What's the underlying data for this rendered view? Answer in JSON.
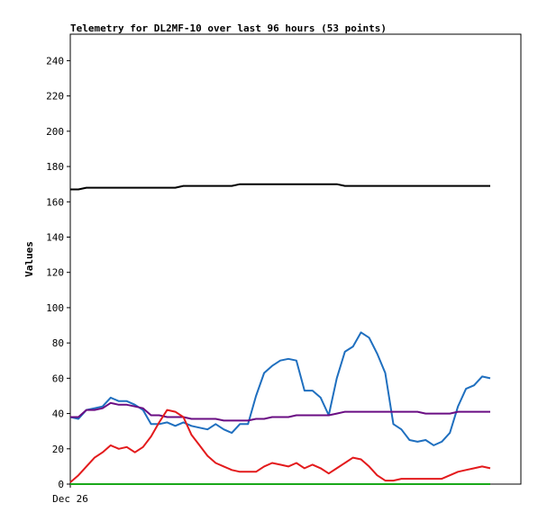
{
  "chart_data": {
    "type": "line",
    "title": "Telemetry for DL2MF-10 over last 96 hours (53 points)",
    "ylabel": "Values",
    "xlabel": "",
    "ylim": [
      0,
      255
    ],
    "y_ticks": [
      0,
      20,
      40,
      60,
      80,
      100,
      120,
      140,
      160,
      180,
      200,
      220,
      240
    ],
    "x_tick_labels": [
      "Dec 26"
    ],
    "grid": false,
    "legend": "none",
    "point_count": 53,
    "series": [
      {
        "color": "#000000",
        "values": [
          167,
          167,
          168,
          168,
          168,
          168,
          168,
          168,
          168,
          168,
          168,
          168,
          168,
          168,
          169,
          169,
          169,
          169,
          169,
          169,
          169,
          170,
          170,
          170,
          170,
          170,
          170,
          170,
          170,
          170,
          170,
          170,
          170,
          170,
          169,
          169,
          169,
          169,
          169,
          169,
          169,
          169,
          169,
          169,
          169,
          169,
          169,
          169,
          169,
          169,
          169,
          169,
          169
        ]
      },
      {
        "color": "#1f6fbf",
        "values": [
          38,
          37,
          42,
          43,
          44,
          49,
          47,
          47,
          45,
          42,
          34,
          34,
          35,
          33,
          35,
          33,
          32,
          31,
          34,
          31,
          29,
          34,
          34,
          50,
          63,
          67,
          70,
          71,
          70,
          53,
          53,
          49,
          39,
          60,
          75,
          78,
          86,
          83,
          74,
          63,
          34,
          31,
          25,
          24,
          25,
          22,
          24,
          29,
          44,
          54,
          56,
          61,
          60
        ]
      },
      {
        "color": "#6a0d83",
        "values": [
          38,
          38,
          42,
          42,
          43,
          46,
          45,
          45,
          44,
          43,
          39,
          39,
          38,
          38,
          38,
          37,
          37,
          37,
          37,
          36,
          36,
          36,
          36,
          37,
          37,
          38,
          38,
          38,
          39,
          39,
          39,
          39,
          39,
          40,
          41,
          41,
          41,
          41,
          41,
          41,
          41,
          41,
          41,
          41,
          40,
          40,
          40,
          40,
          41,
          41,
          41,
          41,
          41
        ]
      },
      {
        "color": "#e31a1c",
        "values": [
          1,
          5,
          10,
          15,
          18,
          22,
          20,
          21,
          18,
          21,
          27,
          35,
          42,
          41,
          38,
          28,
          22,
          16,
          12,
          10,
          8,
          7,
          7,
          7,
          10,
          12,
          11,
          10,
          12,
          9,
          11,
          9,
          6,
          9,
          12,
          15,
          14,
          10,
          5,
          2,
          2,
          3,
          3,
          3,
          3,
          3,
          3,
          5,
          7,
          8,
          9,
          10,
          9
        ]
      },
      {
        "color": "#1aa81a",
        "values": [
          0,
          0,
          0,
          0,
          0,
          0,
          0,
          0,
          0,
          0,
          0,
          0,
          0,
          0,
          0,
          0,
          0,
          0,
          0,
          0,
          0,
          0,
          0,
          0,
          0,
          0,
          0,
          0,
          0,
          0,
          0,
          0,
          0,
          0,
          0,
          0,
          0,
          0,
          0,
          0,
          0,
          0,
          0,
          0,
          0,
          0,
          0,
          0,
          0,
          0,
          0,
          0,
          0
        ]
      }
    ]
  }
}
